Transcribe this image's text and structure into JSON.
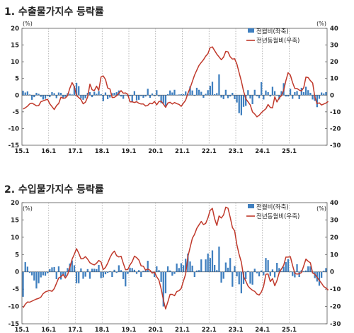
{
  "chart_data": [
    {
      "type": "bar+line",
      "title": "1. 수출물가지수 등락률",
      "left_unit": "(%)",
      "right_unit": "(%)",
      "x_tick_labels": [
        "15.1",
        "16.1",
        "17.1",
        "18.1",
        "19.1",
        "20.1",
        "21.1",
        "22.1",
        "23.1",
        "24.1",
        "25.1"
      ],
      "y_left_ticks": [
        20,
        15,
        10,
        5,
        0,
        -5,
        -10,
        -15
      ],
      "y_right_ticks": [
        40,
        30,
        20,
        10,
        0,
        -10,
        -20,
        -30
      ],
      "ylim_left": [
        -15,
        20
      ],
      "ylim_right": [
        -30,
        40
      ],
      "grid": "vertical dotted at January",
      "legend": [
        {
          "name": "전월비(좌축)",
          "type": "bar",
          "color": "#3f7fbf"
        },
        {
          "name": "전년동월비(우축)",
          "type": "line",
          "color": "#c0392b"
        }
      ],
      "series": [
        {
          "name": "전월비(좌축)",
          "axis": "left",
          "values": [
            1.3,
            0.8,
            1.1,
            0.2,
            -1.4,
            -0.6,
            0.7,
            0.4,
            -0.5,
            -1.3,
            -1.1,
            -0.3,
            -0.6,
            0.9,
            0.6,
            -0.9,
            0.8,
            0.7,
            -0.8,
            -0.5,
            0.6,
            0.4,
            0.2,
            2.7,
            3.7,
            2.7,
            -1.0,
            -1.4,
            -0.9,
            0.7,
            0.9,
            -0.6,
            1.0,
            0.4,
            1.2,
            0.3,
            -1.8,
            0.8,
            -1.2,
            -0.7,
            0.6,
            0.7,
            0.9,
            1.4,
            -0.4,
            -1.1,
            0.1,
            -0.3,
            -0.3,
            -2.0,
            1.2,
            -1.6,
            -1.4,
            -0.3,
            -0.8,
            -0.4,
            1.9,
            -0.8,
            0.5,
            -0.3,
            1.5,
            -0.4,
            -2.4,
            -2.5,
            -3.3,
            0.3,
            1.4,
            0.8,
            1.6,
            0.1,
            0.2,
            0.3,
            0.3,
            1.1,
            0.4,
            2.6,
            1.4,
            -0.2,
            2.2,
            1.6,
            1.0,
            -0.8,
            0.4,
            1.5,
            2.8,
            4.0,
            0.3,
            0.6,
            6.2,
            -0.7,
            -1.2,
            1.6,
            -0.9,
            -0.4,
            0.7,
            -1.2,
            -2.2,
            -5.4,
            -6.0,
            -3.5,
            -3.2,
            1.5,
            -1.0,
            -2.7,
            1.6,
            -0.3,
            -0.9,
            3.9,
            -1.3,
            1.4,
            0.9,
            -0.4,
            2.5,
            1.2,
            -0.1,
            -1.3,
            1.2,
            3.6,
            -0.4,
            -0.4,
            1.9,
            -1.1,
            0.9,
            1.2,
            -1.2,
            2.2,
            0.9,
            2.5,
            1.5,
            0.7,
            -1.3,
            -1.7,
            -3.6,
            -1.1,
            0.8,
            0.5,
            0.9
          ]
        },
        {
          "name": "전년동월비(우축)",
          "axis": "right",
          "values": [
            -8.3,
            -7.6,
            -6.6,
            -5.2,
            -4.8,
            -5.5,
            -6.4,
            -6.3,
            -4.0,
            -3.4,
            -2.9,
            -2.5,
            -5.2,
            -6.9,
            -8.6,
            -6.3,
            -5.0,
            -1.2,
            -1.9,
            -1.7,
            -0.3,
            4.1,
            7.5,
            5.2,
            -0.3,
            -1.4,
            -2.7,
            -5.2,
            -4.2,
            -1.1,
            6.6,
            3.2,
            2.7,
            5.4,
            2.9,
            10.9,
            11.5,
            9.4,
            4.3,
            3.7,
            -1.4,
            -1.3,
            -0.4,
            1.2,
            2.7,
            1.2,
            1.3,
            0.5,
            -4.0,
            -4.0,
            -4.4,
            -3.9,
            -4.9,
            -5.3,
            -5.3,
            -6.5,
            -6.1,
            -4.8,
            -5.2,
            -3.8,
            -5.8,
            -3.8,
            -3.6,
            -5.4,
            -7.3,
            -4.7,
            -4.3,
            -5.3,
            -4.4,
            -5.1,
            -5.5,
            -6.7,
            -4.8,
            -3.0,
            1.1,
            4.3,
            8.2,
            12.0,
            15.0,
            17.8,
            19.6,
            21.2,
            23.3,
            24.9,
            28.4,
            28.9,
            26.7,
            24.5,
            22.9,
            21.2,
            22.7,
            26.2,
            25.9,
            23.0,
            21.6,
            21.8,
            18.6,
            13.5,
            8.4,
            2.4,
            -2.2,
            -4.0,
            -5.9,
            -10.0,
            -11.3,
            -13.0,
            -12.1,
            -10.5,
            -9.3,
            -8.2,
            -5.6,
            -7.4,
            -7.6,
            -1.0,
            -4.1,
            -1.6,
            -0.4,
            2.9,
            8.7,
            13.4,
            12.0,
            7.6,
            4.0,
            4.0,
            3.0,
            2.5,
            4.5,
            10.8,
            10.5,
            8.7,
            7.3,
            -1.1,
            -5.1,
            -4.6,
            -5.9,
            -5.3,
            -4.7,
            -3.8
          ]
        }
      ]
    },
    {
      "type": "bar+line",
      "title": "2. 수입물가지수 등락률",
      "left_unit": "(%)",
      "right_unit": "(%)",
      "x_tick_labels": [
        "15.1",
        "16.1",
        "17.1",
        "18.1",
        "19.1",
        "20.1",
        "21.1",
        "22.1",
        "23.1",
        "24.1",
        "25.1"
      ],
      "y_left_ticks": [
        20,
        15,
        10,
        5,
        0,
        -5,
        -10,
        -15
      ],
      "y_right_ticks": [
        40,
        30,
        20,
        10,
        0,
        -10,
        -20,
        -30
      ],
      "ylim_left": [
        -15,
        20
      ],
      "ylim_right": [
        -30,
        40
      ],
      "grid": "vertical dotted at January",
      "legend": [
        {
          "name": "전월비(좌축)",
          "type": "bar",
          "color": "#3f7fbf"
        },
        {
          "name": "전년동월비(우축)",
          "type": "line",
          "color": "#c0392b"
        }
      ],
      "series": [
        {
          "name": "전월비(좌축)",
          "axis": "left",
          "values": [
            -7.2,
            2.8,
            1.5,
            -0.3,
            -1.0,
            -2.5,
            -4.8,
            -3.3,
            -1.6,
            -1.0,
            -1.1,
            -0.4,
            0.8,
            1.3,
            1.4,
            -2.1,
            1.6,
            -2.2,
            -0.9,
            -1.4,
            1.1,
            2.4,
            3.3,
            1.9,
            -3.3,
            -3.3,
            1.0,
            -2.0,
            -1.4,
            0.8,
            -2.0,
            0.9,
            0.9,
            0.8,
            2.0,
            -1.8,
            -1.6,
            -0.7,
            -0.3,
            0.2,
            -1.5,
            0.6,
            -0.3,
            1.9,
            0.5,
            -2.1,
            -4.2,
            -0.6,
            1.2,
            1.1,
            0.6,
            -0.6,
            0.5,
            -1.5,
            0.3,
            0.4,
            3.2,
            0.1,
            -0.4,
            -1.5,
            1.6,
            0.5,
            -2.9,
            -10.0,
            -6.2,
            1.6,
            0.4,
            -1.1,
            -0.6,
            2.4,
            1.1,
            2.5,
            1.9,
            3.8,
            5.3,
            3.0,
            1.8,
            -1.5,
            0.4,
            0.5,
            3.6,
            0.1,
            3.6,
            5.3,
            4.0,
            6.2,
            2.0,
            0.5,
            7.3,
            -3.1,
            -2.0,
            2.7,
            1.2,
            4.0,
            -4.3,
            1.7,
            -1.3,
            -3.6,
            -6.2,
            -3.5,
            -2.1,
            0.3,
            -3.4,
            -3.7,
            0.9,
            -0.4,
            -1.3,
            0.4,
            -1.0,
            4.0,
            3.4,
            -1.2,
            0.7,
            -1.6,
            2.6,
            1.1,
            0.2,
            1.5,
            2.8,
            3.7,
            0.1,
            -1.2,
            -1.6,
            2.2,
            -1.5,
            0.5,
            0.2,
            0.4,
            1.6,
            1.6,
            -0.4,
            -1.8,
            -2.8,
            -4.0,
            -1.7,
            0.3,
            1.1
          ]
        },
        {
          "name": "전년동월비(우축)",
          "axis": "right",
          "values": [
            -20.8,
            -18.7,
            -17.4,
            -17.5,
            -16.9,
            -16.3,
            -15.7,
            -15.3,
            -14.6,
            -12.6,
            -11.6,
            -11.1,
            -10.8,
            -11.2,
            -9.7,
            -6.6,
            -3.5,
            -2.8,
            -1.5,
            -3.6,
            -1.6,
            2.6,
            7.3,
            10.1,
            13.4,
            10.8,
            7.5,
            7.7,
            8.8,
            7.3,
            5.3,
            4.5,
            4.0,
            5.0,
            6.6,
            5.7,
            1.3,
            2.6,
            5.0,
            8.2,
            10.6,
            12.0,
            9.4,
            8.6,
            9.0,
            5.0,
            1.2,
            1.3,
            4.0,
            5.9,
            9.1,
            8.2,
            6.8,
            3.5,
            3.3,
            1.0,
            1.7,
            0.9,
            -0.7,
            -0.1,
            -2.8,
            -4.8,
            -9.8,
            -16.2,
            -21.4,
            -17.3,
            -13.0,
            -13.0,
            -13.8,
            -11.4,
            -10.9,
            -9.6,
            -5.3,
            -1.3,
            8.8,
            14.1,
            19.4,
            21.7,
            25.2,
            27.2,
            29.1,
            27.3,
            28.0,
            31.2,
            35.5,
            36.7,
            30.8,
            26.8,
            32.3,
            31.1,
            32.8,
            37.4,
            36.8,
            31.6,
            25.6,
            23.7,
            15.6,
            10.1,
            5.6,
            -2.6,
            -5.3,
            -8.2,
            -9.6,
            -10.6,
            -11.3,
            -12.8,
            -13.4,
            -11.6,
            -8.4,
            -1.4,
            -1.2,
            -5.6,
            -3.9,
            -8.0,
            -5.0,
            -0.4,
            1.7,
            3.8,
            8.5,
            8.5,
            8.8,
            3.8,
            -0.8,
            -1.3,
            -1.1,
            -0.4,
            3.5,
            7.4,
            6.1,
            5.2,
            -0.6,
            -1.4,
            -3.2,
            -4.9,
            -6.5,
            -8.5,
            -9.3,
            -10.5
          ]
        }
      ]
    }
  ]
}
